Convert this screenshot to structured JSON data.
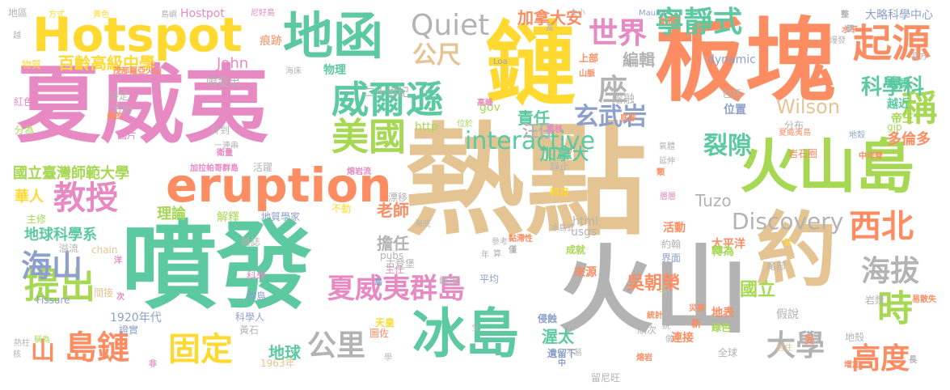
{
  "palette": {
    "green": "#5cc9a0",
    "pink": "#e78ac3",
    "tan": "#e5c494",
    "orange": "#fc8d62",
    "yellow": "#ffd92f",
    "gray": "#b3b3b3",
    "olive": "#a6d854",
    "blue": "#8da0cb"
  },
  "words": [
    {
      "text": "熱點",
      "color": "tan"
    },
    {
      "text": "板塊",
      "color": "orange"
    },
    {
      "text": "夏威夷",
      "color": "pink"
    },
    {
      "text": "噴發",
      "color": "green"
    },
    {
      "text": "鏈",
      "color": "yellow"
    },
    {
      "text": "火山",
      "color": "gray"
    },
    {
      "text": "約",
      "color": "tan"
    },
    {
      "text": "Hotspot",
      "color": "yellow"
    },
    {
      "text": "地函",
      "color": "green"
    },
    {
      "text": "火山島",
      "color": "olive"
    },
    {
      "text": "冰島",
      "color": "green"
    },
    {
      "text": "eruption",
      "color": "orange"
    },
    {
      "text": "起源",
      "color": "orange"
    },
    {
      "text": "威爾遜",
      "color": "green"
    },
    {
      "text": "Quiet",
      "color": "gray"
    },
    {
      "text": "美國",
      "color": "olive"
    },
    {
      "text": "教授",
      "color": "pink"
    },
    {
      "text": "提出",
      "color": "olive"
    },
    {
      "text": "島鏈",
      "color": "orange"
    },
    {
      "text": "固定",
      "color": "yellow"
    },
    {
      "text": "海山",
      "color": "blue"
    },
    {
      "text": "西北",
      "color": "orange"
    },
    {
      "text": "寧靜式",
      "color": "green"
    },
    {
      "text": "世界",
      "color": "pink"
    },
    {
      "text": "稱",
      "color": "olive"
    },
    {
      "text": "公尺",
      "color": "tan"
    },
    {
      "text": "座",
      "color": "gray"
    },
    {
      "text": "玄武岩",
      "color": "blue"
    },
    {
      "text": "裂隙",
      "color": "green"
    },
    {
      "text": "interactive",
      "color": "green"
    },
    {
      "text": "Discovery",
      "color": "gray"
    },
    {
      "text": "夏威夷群島",
      "color": "pink"
    },
    {
      "text": "海拔",
      "color": "gray"
    },
    {
      "text": "時",
      "color": "olive"
    },
    {
      "text": "大學",
      "color": "gray"
    },
    {
      "text": "高度",
      "color": "orange"
    },
    {
      "text": "公里",
      "color": "gray"
    },
    {
      "text": "山",
      "color": "orange"
    },
    {
      "text": "Wilson",
      "color": "tan"
    },
    {
      "text": "科學科",
      "color": "green"
    },
    {
      "text": "國立臺灣師範大學",
      "color": "olive"
    },
    {
      "text": "百齡高級中學",
      "color": "yellow"
    },
    {
      "text": "加拿大安",
      "color": "orange"
    },
    {
      "text": "世界",
      "color": "pink"
    },
    {
      "text": "吳朝榮",
      "color": "orange"
    },
    {
      "text": "國立",
      "color": "olive"
    },
    {
      "text": "編輯",
      "color": "gray"
    },
    {
      "text": "擔任",
      "color": "gray"
    },
    {
      "text": "老師",
      "color": "orange"
    },
    {
      "text": "責任",
      "color": "green"
    },
    {
      "text": "汪仔",
      "color": "gray"
    },
    {
      "text": "加拿大",
      "color": "green"
    },
    {
      "text": "地球科學系",
      "color": "green"
    },
    {
      "text": "華人",
      "color": "yellow"
    },
    {
      "text": "理論",
      "color": "olive"
    },
    {
      "text": "地球",
      "color": "green"
    },
    {
      "text": "渥太",
      "color": "green"
    },
    {
      "text": "多倫多",
      "color": "orange"
    },
    {
      "text": "大略科學中心",
      "color": "blue"
    },
    {
      "text": "Tuzo",
      "color": "gray"
    },
    {
      "text": "John",
      "color": "pink"
    },
    {
      "text": "越近",
      "color": "green"
    },
    {
      "text": "地質",
      "color": "green"
    },
    {
      "text": "帝王",
      "color": "olive"
    },
    {
      "text": "dynamic",
      "color": "blue"
    },
    {
      "text": "Mauna",
      "color": "blue"
    },
    {
      "text": "Hostpot",
      "color": "pink"
    },
    {
      "text": "Loa",
      "color": "blue"
    },
    {
      "text": "gov",
      "color": "olive"
    },
    {
      "text": "http",
      "color": "olive"
    },
    {
      "text": "html",
      "color": "gray"
    },
    {
      "text": "usgs",
      "color": "gray"
    },
    {
      "text": "pubs",
      "color": "gray"
    },
    {
      "text": "chain",
      "color": "tan"
    },
    {
      "text": "Fissure",
      "color": "blue"
    },
    {
      "text": "gip",
      "color": "olive"
    },
    {
      "text": "1920年代",
      "color": "blue"
    },
    {
      "text": "1963年",
      "color": "tan"
    },
    {
      "text": "物理",
      "color": "green"
    },
    {
      "text": "二十世紀",
      "color": "gray"
    },
    {
      "text": "噴發出",
      "color": "gray"
    },
    {
      "text": "熔融",
      "color": "gray"
    },
    {
      "text": "上部",
      "color": "orange"
    },
    {
      "text": "包括",
      "color": "gray"
    },
    {
      "text": "位置",
      "color": "blue"
    },
    {
      "text": "分布",
      "color": "gray"
    },
    {
      "text": "岩石圈",
      "color": "orange"
    },
    {
      "text": "方式",
      "color": "yellow"
    },
    {
      "text": "黃色",
      "color": "yellow"
    },
    {
      "text": "尼好島",
      "color": "pink"
    },
    {
      "text": "痕跡",
      "color": "orange"
    },
    {
      "text": "物質",
      "color": "yellow"
    },
    {
      "text": "紅色",
      "color": "pink"
    },
    {
      "text": "分為",
      "color": "olive"
    },
    {
      "text": "圖片",
      "color": "pink"
    },
    {
      "text": "特定",
      "color": "gray"
    },
    {
      "text": "方向",
      "color": "gray"
    },
    {
      "text": "升到",
      "color": "gray"
    },
    {
      "text": "活躍",
      "color": "gray"
    },
    {
      "text": "解釋",
      "color": "olive"
    },
    {
      "text": "地質學家",
      "color": "blue"
    },
    {
      "text": "不動",
      "color": "yellow"
    },
    {
      "text": "雜誌",
      "color": "gray"
    },
    {
      "text": "主修",
      "color": "olive"
    },
    {
      "text": "溢流",
      "color": "gray"
    },
    {
      "text": "科學",
      "color": "pink"
    },
    {
      "text": "科學人",
      "color": "blue"
    },
    {
      "text": "黃石",
      "color": "gray"
    },
    {
      "text": "證實",
      "color": "blue"
    },
    {
      "text": "間接",
      "color": "tan"
    },
    {
      "text": "群島",
      "color": "blue"
    },
    {
      "text": "來源",
      "color": "orange"
    },
    {
      "text": "太平洋",
      "color": "orange"
    },
    {
      "text": "活動",
      "color": "orange"
    },
    {
      "text": "轉為",
      "color": "olive"
    },
    {
      "text": "尾部",
      "color": "gray"
    },
    {
      "text": "約翰",
      "color": "gray"
    },
    {
      "text": "界面",
      "color": "blue"
    },
    {
      "text": "地表",
      "color": "orange"
    },
    {
      "text": "岩漿",
      "color": "gray"
    },
    {
      "text": "綠色",
      "color": "olive"
    },
    {
      "text": "假說",
      "color": "gray"
    },
    {
      "text": "連接",
      "color": "orange"
    },
    {
      "text": "順次",
      "color": "gray"
    },
    {
      "text": "全球",
      "color": "gray"
    },
    {
      "text": "居住",
      "color": "tan"
    },
    {
      "text": "地殼",
      "color": "gray"
    },
    {
      "text": "侵蝕",
      "color": "blue"
    },
    {
      "text": "遺留下",
      "color": "blue"
    },
    {
      "text": "留尼旺",
      "color": "gray"
    },
    {
      "text": "天皇",
      "color": "yellow"
    },
    {
      "text": "圖佐",
      "color": "orange"
    },
    {
      "text": "主任",
      "color": "pink"
    },
    {
      "text": "科目",
      "color": "yellow"
    },
    {
      "text": "靜止",
      "color": "gray"
    },
    {
      "text": "漂移",
      "color": "gray"
    },
    {
      "text": "成就",
      "color": "olive"
    },
    {
      "text": "峰頂",
      "color": "gray"
    },
    {
      "text": "平均",
      "color": "blue"
    },
    {
      "text": "古登堡",
      "color": "gray"
    },
    {
      "text": "熱柱",
      "color": "gray"
    },
    {
      "text": "茂那羅亞火山",
      "color": "orange"
    },
    {
      "text": "加拉帕哥群島",
      "color": "pink"
    },
    {
      "text": "夏威夷島",
      "color": "orange"
    },
    {
      "text": "延伸",
      "color": "gray"
    },
    {
      "text": "氣體",
      "color": "gray"
    },
    {
      "text": "海底",
      "color": "gray"
    },
    {
      "text": "冰島式",
      "color": "gray"
    },
    {
      "text": "黏滯性",
      "color": "orange"
    },
    {
      "text": "統計",
      "color": "orange"
    },
    {
      "text": "災害",
      "color": "orange"
    },
    {
      "text": "新",
      "color": "orange"
    },
    {
      "text": "受",
      "color": "orange"
    },
    {
      "text": "增加",
      "color": "orange"
    },
    {
      "text": "易散失",
      "color": "orange"
    },
    {
      "text": "一連串",
      "color": "gray"
    },
    {
      "text": "越",
      "color": "gray"
    },
    {
      "text": "核",
      "color": "gray"
    },
    {
      "text": "稱為",
      "color": "olive"
    },
    {
      "text": "海床",
      "color": "gray"
    },
    {
      "text": "地殼",
      "color": "blue"
    },
    {
      "text": "水平",
      "color": "orange"
    },
    {
      "text": "便",
      "color": "gray"
    },
    {
      "text": "整",
      "color": "gray"
    },
    {
      "text": "爆發",
      "color": "gray"
    },
    {
      "text": "官方",
      "color": "gray"
    },
    {
      "text": "中洋脊",
      "color": "orange"
    },
    {
      "text": "熔岩流",
      "color": "pink"
    },
    {
      "text": "高峰",
      "color": "pink"
    },
    {
      "text": "推移",
      "color": "pink"
    },
    {
      "text": "位於",
      "color": "olive"
    },
    {
      "text": "大小",
      "color": "gray"
    },
    {
      "text": "交界",
      "color": "orange"
    },
    {
      "text": "底部",
      "color": "orange"
    },
    {
      "text": "山脈",
      "color": "orange"
    },
    {
      "text": "衛量",
      "color": "pink"
    },
    {
      "text": "眞的",
      "color": "orange"
    },
    {
      "text": "熔岩",
      "color": "orange"
    },
    {
      "text": "學",
      "color": "gray"
    },
    {
      "text": "全",
      "color": "gray"
    },
    {
      "text": "中",
      "color": "blue"
    },
    {
      "text": "不易",
      "color": "gray"
    },
    {
      "text": "年",
      "color": "gray"
    },
    {
      "text": "參考",
      "color": "gray"
    },
    {
      "text": "算",
      "color": "gray"
    },
    {
      "text": "僅",
      "color": "gray"
    },
    {
      "text": "類",
      "color": "orange"
    },
    {
      "text": "五",
      "color": "yellow"
    },
    {
      "text": "三",
      "color": "olive"
    },
    {
      "text": "說",
      "color": "gray"
    },
    {
      "text": "做",
      "color": "gray"
    },
    {
      "text": "長",
      "color": "gray"
    },
    {
      "text": "洋",
      "color": "pink"
    },
    {
      "text": "次",
      "color": "pink"
    },
    {
      "text": "非",
      "color": "pink"
    },
    {
      "text": "島",
      "color": "blue"
    },
    {
      "text": "層層",
      "color": "pink"
    },
    {
      "text": "島嶼",
      "color": "gray"
    },
    {
      "text": "盆",
      "color": "gray"
    },
    {
      "text": "地區",
      "color": "gray"
    }
  ]
}
